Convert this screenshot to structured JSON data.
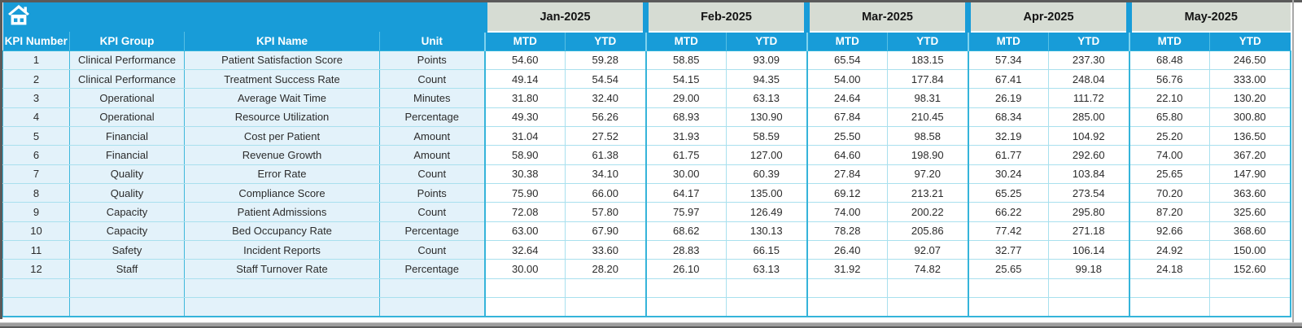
{
  "icons": {
    "home": "home-icon"
  },
  "table": {
    "corner_columns": [
      "KPI Number",
      "KPI Group",
      "KPI Name",
      "Unit"
    ],
    "months": [
      "Jan-2025",
      "Feb-2025",
      "Mar-2025",
      "Apr-2025",
      "May-2025"
    ],
    "sub_columns": [
      "MTD",
      "YTD"
    ],
    "rows": [
      {
        "number": "1",
        "group": "Clinical Performance",
        "name": "Patient Satisfaction Score",
        "unit": "Points",
        "values": [
          "54.60",
          "59.28",
          "58.85",
          "93.09",
          "65.54",
          "183.15",
          "57.34",
          "237.30",
          "68.48",
          "246.50"
        ]
      },
      {
        "number": "2",
        "group": "Clinical Performance",
        "name": "Treatment Success Rate",
        "unit": "Count",
        "values": [
          "49.14",
          "54.54",
          "54.15",
          "94.35",
          "54.00",
          "177.84",
          "67.41",
          "248.04",
          "56.76",
          "333.00"
        ]
      },
      {
        "number": "3",
        "group": "Operational",
        "name": "Average Wait Time",
        "unit": "Minutes",
        "values": [
          "31.80",
          "32.40",
          "29.00",
          "63.13",
          "24.64",
          "98.31",
          "26.19",
          "111.72",
          "22.10",
          "130.20"
        ]
      },
      {
        "number": "4",
        "group": "Operational",
        "name": "Resource Utilization",
        "unit": "Percentage",
        "values": [
          "49.30",
          "56.26",
          "68.93",
          "130.90",
          "67.84",
          "210.45",
          "68.34",
          "285.00",
          "65.80",
          "300.80"
        ]
      },
      {
        "number": "5",
        "group": "Financial",
        "name": "Cost per Patient",
        "unit": "Amount",
        "values": [
          "31.04",
          "27.52",
          "31.93",
          "58.59",
          "25.50",
          "98.58",
          "32.19",
          "104.92",
          "25.20",
          "136.50"
        ]
      },
      {
        "number": "6",
        "group": "Financial",
        "name": "Revenue Growth",
        "unit": "Amount",
        "values": [
          "58.90",
          "61.38",
          "61.75",
          "127.00",
          "64.60",
          "198.90",
          "61.77",
          "292.60",
          "74.00",
          "367.20"
        ]
      },
      {
        "number": "7",
        "group": "Quality",
        "name": "Error Rate",
        "unit": "Count",
        "values": [
          "30.38",
          "34.10",
          "30.00",
          "60.39",
          "27.84",
          "97.20",
          "30.24",
          "103.84",
          "25.65",
          "147.90"
        ]
      },
      {
        "number": "8",
        "group": "Quality",
        "name": "Compliance Score",
        "unit": "Points",
        "values": [
          "75.90",
          "66.00",
          "64.17",
          "135.00",
          "69.12",
          "213.21",
          "65.25",
          "273.54",
          "70.20",
          "363.60"
        ]
      },
      {
        "number": "9",
        "group": "Capacity",
        "name": "Patient Admissions",
        "unit": "Count",
        "values": [
          "72.08",
          "57.80",
          "75.97",
          "126.49",
          "74.00",
          "200.22",
          "66.22",
          "295.80",
          "87.20",
          "325.60"
        ]
      },
      {
        "number": "10",
        "group": "Capacity",
        "name": "Bed Occupancy Rate",
        "unit": "Percentage",
        "values": [
          "63.00",
          "67.90",
          "68.62",
          "130.13",
          "78.28",
          "205.86",
          "77.42",
          "271.18",
          "92.66",
          "368.60"
        ]
      },
      {
        "number": "11",
        "group": "Safety",
        "name": "Incident Reports",
        "unit": "Count",
        "values": [
          "32.64",
          "33.60",
          "28.83",
          "66.15",
          "26.40",
          "92.07",
          "32.77",
          "106.14",
          "24.92",
          "150.00"
        ]
      },
      {
        "number": "12",
        "group": "Staff",
        "name": "Staff Turnover Rate",
        "unit": "Percentage",
        "values": [
          "30.00",
          "28.20",
          "26.10",
          "63.13",
          "31.92",
          "74.82",
          "25.65",
          "99.18",
          "24.18",
          "152.60"
        ]
      }
    ],
    "empty_row_count": 2
  },
  "colors": {
    "header_blue": "#189cd8",
    "month_band": "#d6dcd3",
    "row_left_bg": "#e3f2fa",
    "border_teal": "#35b4da",
    "border_light": "#a9e0ee",
    "frame_gray": "#5a5a5a"
  }
}
